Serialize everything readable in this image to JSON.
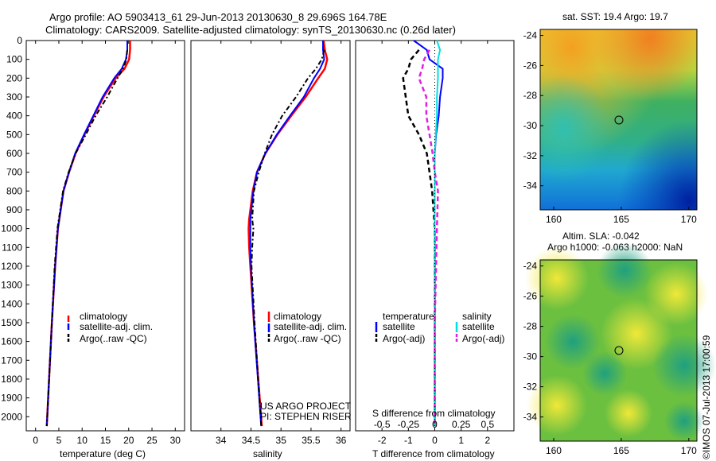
{
  "header": {
    "line1": "Argo profile: AO 5903413_61 29-Jun-2013 20130630_8 29.696S 164.78E",
    "line2": "Climatology: CARS2009. Satellite-adjusted climatology: synTS_20130630.nc (0.26d later)"
  },
  "colors": {
    "climatology": "#ff0000",
    "satellite": "#0000ff",
    "argo": "#000000",
    "sal_satellite": "#00e0e0",
    "sal_argo": "#e020e0"
  },
  "chart_data": [
    {
      "type": "line",
      "name": "temperature-profile",
      "xlabel": "temperature (deg C)",
      "ylabel": "",
      "xlim": [
        -2,
        32
      ],
      "ylim": [
        2075,
        0
      ],
      "xticks": [
        "0",
        "5",
        "10",
        "15",
        "20",
        "25",
        "30"
      ],
      "yticks": [
        "0",
        "100",
        "200",
        "300",
        "400",
        "500",
        "600",
        "700",
        "800",
        "900",
        "1000",
        "1100",
        "1200",
        "1300",
        "1400",
        "1500",
        "1600",
        "1700",
        "1800",
        "1900",
        "2000"
      ],
      "legend": [
        "climatology",
        "satellite-adj. clim.",
        "Argo(..raw -QC)"
      ],
      "depth": [
        0,
        50,
        100,
        150,
        200,
        300,
        400,
        500,
        600,
        700,
        800,
        1000,
        1200,
        1500,
        2050
      ],
      "series": [
        {
          "name": "climatology",
          "values": [
            20.3,
            20.3,
            20.1,
            19.1,
            17.2,
            14.6,
            12.5,
            10.5,
            8.6,
            7.2,
            6.0,
            4.8,
            4.2,
            3.5,
            2.4
          ]
        },
        {
          "name": "satellite-adj. clim.",
          "values": [
            19.7,
            19.7,
            19.4,
            18.5,
            16.9,
            14.4,
            12.4,
            10.4,
            8.5,
            7.2,
            6.0,
            4.8,
            4.2,
            3.5,
            2.4
          ]
        },
        {
          "name": "Argo(..raw -QC)",
          "values": [
            null,
            19.7,
            19.5,
            18.8,
            17.6,
            15.4,
            12.9,
            10.8,
            8.6,
            7.1,
            5.9,
            4.7,
            4.1,
            3.5,
            2.4
          ]
        }
      ]
    },
    {
      "type": "line",
      "name": "salinity-profile",
      "xlabel": "salinity",
      "xlim": [
        33.5,
        36.15
      ],
      "ylim": [
        2075,
        0
      ],
      "xticks": [
        "34",
        "34.5",
        "35",
        "35.5",
        "36"
      ],
      "legend": [
        "climatology",
        "satellite-adj. clim.",
        "Argo(..raw -QC)"
      ],
      "depth": [
        0,
        50,
        100,
        150,
        200,
        300,
        400,
        500,
        600,
        700,
        800,
        950,
        1000,
        1100,
        1200,
        1500,
        2050
      ],
      "series": [
        {
          "name": "climatology",
          "values": [
            35.71,
            35.73,
            35.77,
            35.73,
            35.62,
            35.41,
            35.17,
            34.94,
            34.74,
            34.6,
            34.53,
            34.47,
            34.46,
            34.47,
            34.49,
            34.55,
            34.68
          ]
        },
        {
          "name": "satellite-adj. clim.",
          "values": [
            35.7,
            35.7,
            35.72,
            35.65,
            35.55,
            35.38,
            35.15,
            34.93,
            34.74,
            34.6,
            34.54,
            34.49,
            34.49,
            34.49,
            34.5,
            34.55,
            34.67
          ]
        },
        {
          "name": "Argo(..raw -QC)",
          "values": [
            null,
            35.72,
            35.68,
            35.58,
            35.45,
            35.25,
            35.02,
            34.85,
            34.73,
            34.63,
            34.55,
            34.52,
            34.54,
            34.52,
            34.51,
            34.56,
            34.67
          ]
        }
      ]
    },
    {
      "type": "line",
      "name": "difference-profile",
      "xlabel": "T difference from climatology",
      "top_xlabel": "S difference from climatology",
      "xlim": [
        -3,
        3
      ],
      "ylim": [
        2075,
        0
      ],
      "xticks": [
        "-2",
        "-1",
        "0",
        "1",
        "2"
      ],
      "top_xticks": [
        "-0.5",
        "-0.25",
        "0",
        "0.25",
        "0.5"
      ],
      "legend": {
        "temperature_title": "temperature",
        "salinity_title": "salinity",
        "satellite": "satellite",
        "argo": "Argo(-adj)"
      },
      "annotation": [
        "US ARGO PROJECT",
        "PI: STEPHEN RISER"
      ],
      "depth": [
        0,
        50,
        100,
        150,
        200,
        300,
        400,
        500,
        600,
        700,
        800,
        1000,
        1500,
        2050
      ],
      "series": [
        {
          "name": "temperature satellite",
          "values": [
            -0.8,
            -0.3,
            -0.2,
            0.3,
            0.3,
            0.2,
            0.15,
            0.05,
            0.0,
            0.0,
            0.0,
            0.0,
            0.0,
            0.0
          ]
        },
        {
          "name": "temperature Argo(-adj)",
          "values": [
            null,
            -0.6,
            -0.9,
            -1.0,
            -1.2,
            -1.1,
            -1.0,
            -0.6,
            -0.3,
            -0.2,
            -0.1,
            0.0,
            0.0,
            0.0
          ]
        },
        {
          "name": "salinity satellite",
          "values": [
            0.02,
            0.05,
            0.03,
            0.03,
            0.03,
            0.02,
            0.02,
            0.01,
            0.0,
            0.0,
            0.0,
            0.0,
            0.0,
            0.0
          ]
        },
        {
          "name": "salinity Argo(-adj)",
          "values": [
            null,
            -0.05,
            -0.1,
            -0.12,
            -0.15,
            -0.08,
            -0.08,
            -0.05,
            -0.02,
            0.0,
            0.03,
            0.02,
            0.0,
            0.0
          ]
        }
      ]
    },
    {
      "type": "heatmap",
      "name": "sst-map",
      "title": "sat. SST: 19.4 Argo: 19.7",
      "xlim": [
        159,
        170.6
      ],
      "ylim": [
        -35.6,
        -23.6
      ],
      "xticks": [
        "160",
        "165",
        "170"
      ],
      "yticks": [
        "-24",
        "-26",
        "-28",
        "-30",
        "-32",
        "-34"
      ],
      "profile_marker": [
        164.78,
        -29.696
      ]
    },
    {
      "type": "heatmap",
      "name": "sla-map",
      "title": "Altim. SLA: -0.042",
      "subtitle": "Argo h1000: -0.063 h2000: NaN",
      "xlim": [
        159,
        170.6
      ],
      "ylim": [
        -35.6,
        -23.6
      ],
      "xticks": [
        "160",
        "165",
        "170"
      ],
      "yticks": [
        "-24",
        "-26",
        "-28",
        "-30",
        "-32",
        "-34"
      ],
      "profile_marker": [
        164.78,
        -29.696
      ]
    }
  ],
  "footer": {
    "stamp": "©IMOS 07-Jul-2013 17:00:59"
  }
}
